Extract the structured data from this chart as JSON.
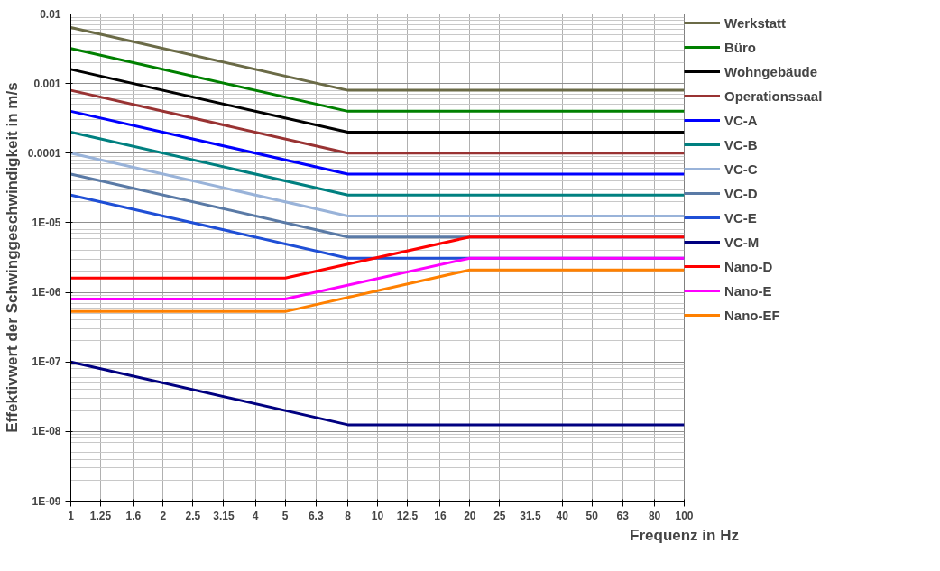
{
  "chart_data": {
    "type": "line",
    "xlabel": "Frequenz in Hz",
    "ylabel": "Effektivwert der Schwinggeschwindigkeit in m/s",
    "log": "xy",
    "grid": true,
    "legend": "right",
    "line_style": "solid",
    "marker": "none",
    "xlim": [
      1,
      100
    ],
    "ylim": [
      1e-09,
      0.01
    ],
    "xticks": [
      1,
      1.25,
      1.6,
      2,
      2.5,
      3.15,
      4,
      5,
      6.3,
      8,
      10,
      12.5,
      16,
      20,
      25,
      31.5,
      40,
      50,
      63,
      80,
      100
    ],
    "yticks": [
      {
        "value": 1e-09,
        "label": "1E-09"
      },
      {
        "value": 1e-08,
        "label": "1E-08"
      },
      {
        "value": 1e-07,
        "label": "1E-07"
      },
      {
        "value": 1e-06,
        "label": "1E-06"
      },
      {
        "value": 1e-05,
        "label": "1E-05"
      },
      0.0001,
      0.001,
      0.01
    ],
    "series": [
      {
        "name": "Werkstatt",
        "color": "#6b6b47",
        "x": [
          1,
          8,
          100
        ],
        "values": [
          0.0064,
          0.0008,
          0.0008
        ]
      },
      {
        "name": "Büro",
        "color": "#008000",
        "x": [
          1,
          8,
          100
        ],
        "values": [
          0.0032,
          0.0004,
          0.0004
        ]
      },
      {
        "name": "Wohngebäude",
        "color": "#000000",
        "x": [
          1,
          8,
          100
        ],
        "values": [
          0.0016,
          0.0002,
          0.0002
        ]
      },
      {
        "name": "Operationssaal",
        "color": "#993333",
        "x": [
          1,
          8,
          100
        ],
        "values": [
          0.0008,
          0.0001,
          0.0001
        ]
      },
      {
        "name": "VC-A",
        "color": "#0000ff",
        "x": [
          1,
          8,
          100
        ],
        "values": [
          0.0004,
          5e-05,
          5e-05
        ]
      },
      {
        "name": "VC-B",
        "color": "#008080",
        "x": [
          1,
          8,
          100
        ],
        "values": [
          0.0002,
          2.5e-05,
          2.5e-05
        ]
      },
      {
        "name": "VC-C",
        "color": "#99b3d9",
        "x": [
          1,
          8,
          100
        ],
        "values": [
          0.0001,
          1.25e-05,
          1.25e-05
        ]
      },
      {
        "name": "VC-D",
        "color": "#5a7aa6",
        "x": [
          1,
          8,
          100
        ],
        "values": [
          5e-05,
          6.25e-06,
          6.25e-06
        ]
      },
      {
        "name": "VC-E",
        "color": "#1f4fd6",
        "x": [
          1,
          8,
          100
        ],
        "values": [
          2.5e-05,
          3.1e-06,
          3.1e-06
        ]
      },
      {
        "name": "VC-M",
        "color": "#000080",
        "x": [
          1,
          8,
          100
        ],
        "values": [
          1e-07,
          1.25e-08,
          1.25e-08
        ]
      },
      {
        "name": "Nano-D",
        "color": "#ff0000",
        "x": [
          1,
          5,
          20,
          100
        ],
        "values": [
          1.6e-06,
          1.6e-06,
          6.25e-06,
          6.25e-06
        ]
      },
      {
        "name": "Nano-E",
        "color": "#ff00ff",
        "x": [
          1,
          5,
          20,
          100
        ],
        "values": [
          8e-07,
          8e-07,
          3.1e-06,
          3.1e-06
        ]
      },
      {
        "name": "Nano-EF",
        "color": "#ff8000",
        "x": [
          1,
          5,
          20,
          100
        ],
        "values": [
          5.3e-07,
          5.3e-07,
          2.1e-06,
          2.1e-06
        ]
      }
    ]
  }
}
